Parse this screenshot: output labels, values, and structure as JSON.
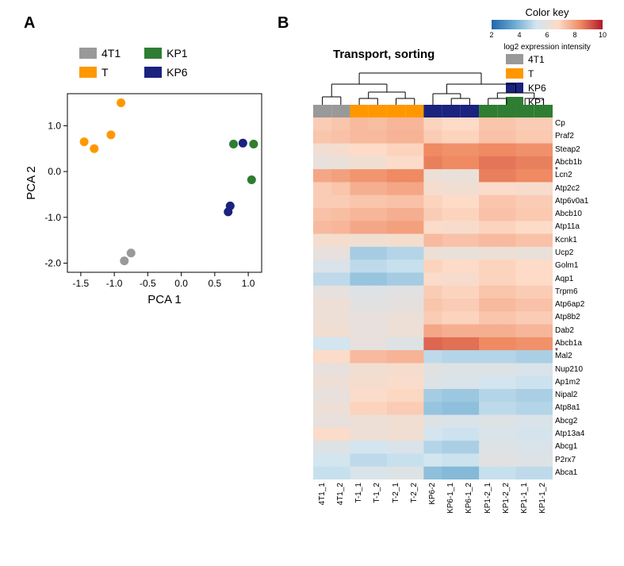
{
  "panelA": {
    "label": "A",
    "xlabel": "PCA 1",
    "ylabel": "PCA 2",
    "xticks": [
      "-1.5",
      "-1.0",
      "-0.5",
      "0.0",
      "0.5",
      "1.0"
    ],
    "yticks": [
      "-2.0",
      "-1.0",
      "0.0",
      "1.0"
    ],
    "xlim": [
      -1.7,
      1.2
    ],
    "ylim": [
      -2.2,
      1.7
    ],
    "legend": [
      {
        "label": "4T1",
        "color": "#999999"
      },
      {
        "label": "KP1",
        "color": "#2e7d32"
      },
      {
        "label": "T",
        "color": "#ff9800"
      },
      {
        "label": "KP6",
        "color": "#1a237e"
      }
    ],
    "points": [
      {
        "x": -1.45,
        "y": 0.65,
        "group": "T"
      },
      {
        "x": -1.3,
        "y": 0.5,
        "group": "T"
      },
      {
        "x": -1.05,
        "y": 0.8,
        "group": "T"
      },
      {
        "x": -0.9,
        "y": 1.5,
        "group": "T"
      },
      {
        "x": -0.85,
        "y": -1.95,
        "group": "4T1"
      },
      {
        "x": -0.75,
        "y": -1.78,
        "group": "4T1"
      },
      {
        "x": 0.7,
        "y": -0.88,
        "group": "KP6"
      },
      {
        "x": 0.73,
        "y": -0.75,
        "group": "KP6"
      },
      {
        "x": 0.78,
        "y": 0.6,
        "group": "KP1"
      },
      {
        "x": 1.05,
        "y": -0.18,
        "group": "KP1"
      },
      {
        "x": 0.92,
        "y": 0.62,
        "group": "KP6"
      },
      {
        "x": 1.08,
        "y": 0.6,
        "group": "KP1"
      }
    ]
  },
  "panelB": {
    "label": "B",
    "title": "Transport, sorting",
    "colorkey": {
      "title": "Color key",
      "subtitle": "log2 expression intensity",
      "ticks": [
        "2",
        "4",
        "6",
        "8",
        "10"
      ],
      "gradient": [
        "#2166ac",
        "#67a9cf",
        "#d1e5f0",
        "#fddbc7",
        "#ef8a62",
        "#b2182b"
      ]
    },
    "groupBar": [
      {
        "label": "4T1",
        "color": "#999999"
      },
      {
        "label": "T",
        "color": "#ff9800"
      },
      {
        "label": "KP6",
        "color": "#1a237e"
      },
      {
        "label": "KP1",
        "color": "#2e7d32"
      }
    ],
    "sampleGroups": [
      "4T1",
      "4T1",
      "T",
      "T",
      "T",
      "T",
      "KP6",
      "KP6",
      "KP6",
      "KP1",
      "KP1",
      "KP1",
      "KP1"
    ],
    "samples": [
      "4T1_1",
      "4T1_2",
      "T-1_1",
      "T-1_2",
      "T-2_1",
      "T-2_2",
      "KP6-2",
      "KP6-1_1",
      "KP6-1_2",
      "KP1-2_1",
      "KP1-2_2",
      "KP1-1_1",
      "KP1-1_2"
    ],
    "genes": [
      "Cp",
      "Praf2",
      "Steap2",
      "Abcb1b *",
      "Lcn2",
      "Atp2c2",
      "Atp6v0a1",
      "Abcb10",
      "Atp11a",
      "Kcnk1",
      "Ucp2",
      "Golm1",
      "Aqp1",
      "Trpm6",
      "Atp6ap2",
      "Atp8b2",
      "Dab2",
      "Abcb1a *",
      "Mal2",
      "Nup210",
      "Ap1m2",
      "Nipal2",
      "Atp8a1",
      "Abcg2",
      "Atp13a4",
      "Abcg1",
      "P2rx7",
      "Abca1"
    ],
    "matrix": [
      [
        8,
        8.2,
        8.5,
        8.4,
        8.6,
        8.6,
        7.8,
        7.6,
        7.6,
        8.2,
        8.2,
        8.0,
        8.0
      ],
      [
        8.2,
        8.3,
        8.5,
        8.5,
        8.7,
        8.7,
        8.0,
        7.8,
        7.8,
        8.3,
        8.3,
        8.1,
        8.1
      ],
      [
        7.0,
        7.2,
        7.6,
        7.6,
        7.8,
        7.8,
        9.8,
        9.6,
        9.6,
        9.8,
        9.8,
        9.6,
        9.6
      ],
      [
        6.5,
        6.6,
        7.0,
        7.0,
        7.5,
        7.5,
        10.0,
        9.8,
        9.8,
        10.2,
        10.2,
        10.0,
        10.0
      ],
      [
        9.0,
        9.2,
        9.5,
        9.5,
        9.8,
        9.8,
        6.8,
        6.6,
        6.6,
        10.0,
        10.0,
        9.8,
        9.8
      ],
      [
        8.0,
        8.2,
        8.8,
        8.8,
        9.0,
        9.0,
        7.2,
        7.0,
        7.0,
        7.5,
        7.5,
        7.3,
        7.3
      ],
      [
        8.0,
        8.0,
        8.2,
        8.2,
        8.3,
        8.3,
        7.8,
        7.6,
        7.6,
        8.2,
        8.2,
        8.0,
        8.0
      ],
      [
        8.3,
        8.4,
        8.6,
        8.6,
        8.8,
        8.8,
        8.0,
        7.8,
        7.8,
        8.3,
        8.3,
        8.1,
        8.1
      ],
      [
        8.5,
        8.6,
        9.0,
        9.0,
        9.2,
        9.2,
        7.5,
        7.3,
        7.3,
        7.8,
        7.8,
        7.6,
        7.6
      ],
      [
        7.2,
        7.2,
        7.0,
        7.0,
        7.2,
        7.2,
        8.5,
        8.3,
        8.3,
        8.5,
        8.5,
        8.3,
        8.3
      ],
      [
        6.5,
        6.5,
        4.5,
        4.5,
        4.8,
        4.8,
        6.8,
        6.6,
        6.6,
        6.8,
        6.8,
        6.6,
        6.6
      ],
      [
        5.8,
        5.8,
        5.0,
        5.0,
        5.2,
        5.2,
        7.8,
        7.6,
        7.6,
        7.8,
        7.8,
        7.6,
        7.6
      ],
      [
        5.0,
        5.0,
        4.2,
        4.2,
        4.5,
        4.5,
        7.5,
        7.3,
        7.3,
        7.8,
        7.8,
        7.6,
        7.6
      ],
      [
        6.5,
        6.5,
        6.0,
        6.0,
        6.2,
        6.2,
        8.0,
        7.8,
        7.8,
        8.2,
        8.2,
        8.0,
        8.0
      ],
      [
        6.8,
        6.8,
        6.2,
        6.2,
        6.4,
        6.4,
        8.2,
        8.0,
        8.0,
        8.5,
        8.5,
        8.3,
        8.3
      ],
      [
        6.8,
        6.8,
        6.5,
        6.5,
        6.7,
        6.7,
        8.0,
        7.8,
        7.8,
        8.2,
        8.2,
        8.0,
        8.0
      ],
      [
        7.0,
        7.0,
        6.5,
        6.5,
        6.8,
        6.8,
        9.0,
        8.8,
        8.8,
        8.8,
        8.8,
        8.6,
        8.6
      ],
      [
        5.5,
        5.5,
        6.5,
        6.5,
        6.0,
        6.0,
        10.5,
        10.3,
        10.3,
        9.8,
        9.8,
        9.6,
        9.6
      ],
      [
        7.5,
        7.5,
        8.5,
        8.5,
        8.7,
        8.7,
        5.0,
        4.8,
        4.8,
        4.8,
        4.8,
        4.6,
        4.6
      ],
      [
        6.5,
        6.5,
        7.0,
        7.0,
        7.2,
        7.2,
        6.2,
        6.0,
        6.0,
        6.0,
        6.0,
        5.8,
        5.8
      ],
      [
        6.8,
        6.8,
        7.2,
        7.2,
        7.4,
        7.4,
        6.0,
        5.8,
        5.8,
        5.5,
        5.5,
        5.3,
        5.3
      ],
      [
        6.5,
        6.5,
        7.5,
        7.5,
        7.7,
        7.7,
        4.5,
        4.3,
        4.3,
        4.8,
        4.8,
        4.6,
        4.6
      ],
      [
        6.8,
        6.8,
        7.8,
        7.8,
        8.0,
        8.0,
        4.2,
        4.0,
        4.0,
        5.0,
        5.0,
        4.8,
        4.8
      ],
      [
        6.5,
        6.5,
        6.8,
        6.8,
        7.0,
        7.0,
        6.0,
        5.8,
        5.8,
        6.0,
        6.0,
        5.8,
        5.8
      ],
      [
        7.5,
        7.5,
        6.8,
        6.8,
        7.0,
        7.0,
        5.5,
        5.3,
        5.3,
        5.8,
        5.8,
        5.6,
        5.6
      ],
      [
        6.0,
        6.0,
        5.5,
        5.5,
        5.8,
        5.8,
        4.8,
        4.6,
        4.6,
        6.0,
        6.0,
        5.8,
        5.8
      ],
      [
        5.5,
        5.5,
        5.0,
        5.0,
        5.2,
        5.2,
        5.5,
        5.3,
        5.3,
        6.2,
        6.2,
        6.0,
        6.0
      ],
      [
        5.2,
        5.2,
        5.8,
        5.8,
        6.0,
        6.0,
        4.0,
        3.8,
        3.8,
        5.2,
        5.2,
        5.0,
        5.0
      ]
    ],
    "valueRange": [
      1,
      12
    ]
  }
}
